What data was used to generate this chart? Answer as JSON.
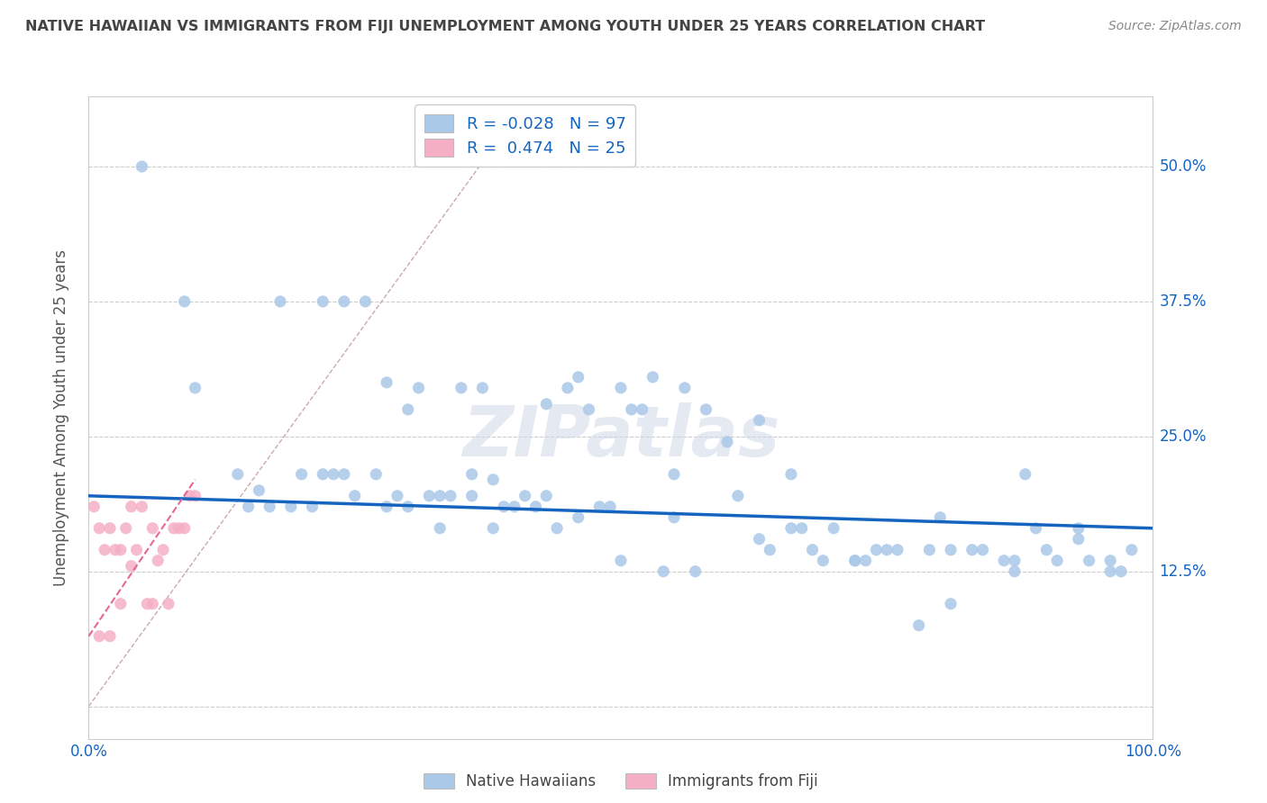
{
  "title": "NATIVE HAWAIIAN VS IMMIGRANTS FROM FIJI UNEMPLOYMENT AMONG YOUTH UNDER 25 YEARS CORRELATION CHART",
  "source": "Source: ZipAtlas.com",
  "ylabel": "Unemployment Among Youth under 25 years",
  "xlim": [
    0.0,
    1.0
  ],
  "ylim": [
    -0.03,
    0.565
  ],
  "yticks": [
    0.0,
    0.125,
    0.25,
    0.375,
    0.5
  ],
  "ytick_labels_right": [
    "",
    "12.5%",
    "25.0%",
    "37.5%",
    "50.0%"
  ],
  "color_blue": "#aac8e8",
  "color_pink": "#f5afc5",
  "color_line_blue": "#1565c0",
  "color_line_pink": "#e8649a",
  "title_color": "#444444",
  "label_color": "#1565c0",
  "blue_scatter_x": [
    0.05,
    0.09,
    0.22,
    0.24,
    0.28,
    0.31,
    0.37,
    0.38,
    0.43,
    0.45,
    0.46,
    0.5,
    0.51,
    0.53,
    0.56,
    0.63,
    0.1,
    0.14,
    0.16,
    0.18,
    0.2,
    0.22,
    0.23,
    0.24,
    0.26,
    0.27,
    0.29,
    0.3,
    0.32,
    0.33,
    0.34,
    0.35,
    0.36,
    0.39,
    0.41,
    0.42,
    0.44,
    0.47,
    0.49,
    0.52,
    0.55,
    0.58,
    0.61,
    0.64,
    0.66,
    0.68,
    0.7,
    0.72,
    0.74,
    0.76,
    0.79,
    0.81,
    0.83,
    0.86,
    0.87,
    0.89,
    0.91,
    0.94,
    0.96,
    0.98,
    0.15,
    0.17,
    0.19,
    0.21,
    0.25,
    0.28,
    0.3,
    0.33,
    0.36,
    0.38,
    0.4,
    0.43,
    0.46,
    0.48,
    0.5,
    0.54,
    0.57,
    0.6,
    0.63,
    0.66,
    0.69,
    0.72,
    0.75,
    0.78,
    0.81,
    0.84,
    0.87,
    0.9,
    0.93,
    0.96,
    0.55,
    0.67,
    0.73,
    0.8,
    0.88,
    0.93,
    0.97
  ],
  "blue_scatter_y": [
    0.5,
    0.375,
    0.375,
    0.375,
    0.3,
    0.295,
    0.295,
    0.21,
    0.28,
    0.295,
    0.305,
    0.295,
    0.275,
    0.305,
    0.295,
    0.265,
    0.295,
    0.215,
    0.2,
    0.375,
    0.215,
    0.215,
    0.215,
    0.215,
    0.375,
    0.215,
    0.195,
    0.275,
    0.195,
    0.195,
    0.195,
    0.295,
    0.215,
    0.185,
    0.195,
    0.185,
    0.165,
    0.275,
    0.185,
    0.275,
    0.215,
    0.275,
    0.195,
    0.145,
    0.215,
    0.145,
    0.165,
    0.135,
    0.145,
    0.145,
    0.145,
    0.145,
    0.145,
    0.135,
    0.135,
    0.165,
    0.135,
    0.135,
    0.135,
    0.145,
    0.185,
    0.185,
    0.185,
    0.185,
    0.195,
    0.185,
    0.185,
    0.165,
    0.195,
    0.165,
    0.185,
    0.195,
    0.175,
    0.185,
    0.135,
    0.125,
    0.125,
    0.245,
    0.155,
    0.165,
    0.135,
    0.135,
    0.145,
    0.075,
    0.095,
    0.145,
    0.125,
    0.145,
    0.155,
    0.125,
    0.175,
    0.165,
    0.135,
    0.175,
    0.215,
    0.165,
    0.125
  ],
  "pink_scatter_x": [
    0.005,
    0.01,
    0.015,
    0.02,
    0.02,
    0.025,
    0.03,
    0.03,
    0.035,
    0.04,
    0.04,
    0.045,
    0.05,
    0.055,
    0.06,
    0.06,
    0.065,
    0.07,
    0.075,
    0.08,
    0.085,
    0.09,
    0.095,
    0.1,
    0.01
  ],
  "pink_scatter_y": [
    0.185,
    0.165,
    0.145,
    0.165,
    0.065,
    0.145,
    0.145,
    0.095,
    0.165,
    0.185,
    0.13,
    0.145,
    0.185,
    0.095,
    0.165,
    0.095,
    0.135,
    0.145,
    0.095,
    0.165,
    0.165,
    0.165,
    0.195,
    0.195,
    0.065
  ],
  "blue_line_x": [
    0.0,
    1.0
  ],
  "blue_line_y": [
    0.195,
    0.165
  ],
  "pink_line_x": [
    0.0,
    0.1
  ],
  "pink_line_y": [
    0.065,
    0.21
  ],
  "ref_line_x": [
    0.0,
    0.4
  ],
  "ref_line_y": [
    0.0,
    0.545
  ]
}
